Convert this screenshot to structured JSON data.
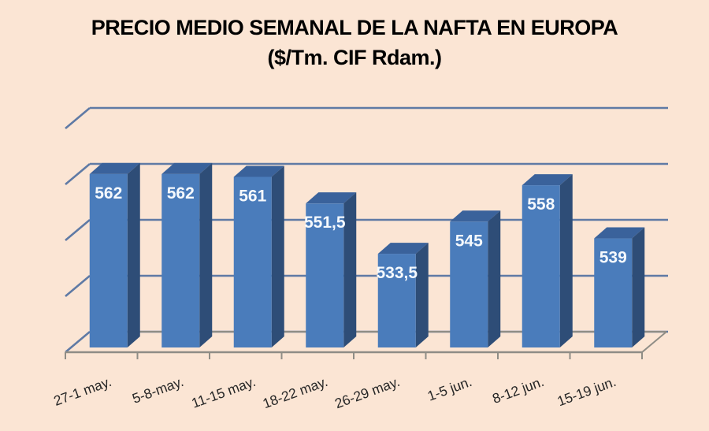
{
  "chart_data": {
    "type": "bar",
    "projection": "3d",
    "title": "PRECIO MEDIO SEMANAL DE LA NAFTA EN EUROPA",
    "subtitle": "($/Tm. CIF Rdam.)",
    "categories": [
      "27-1 may.",
      "5-8-may.",
      "11-15 may.",
      "18-22 may.",
      "26-29 may.",
      "1-5 jun.",
      "8-12 jun.",
      "15-19 jun."
    ],
    "values": [
      562,
      562,
      561,
      551.5,
      533.5,
      545,
      558,
      539
    ],
    "value_labels": [
      "562",
      "562",
      "561",
      "551,5",
      "533,5",
      "545",
      "558",
      "539"
    ],
    "ylim": [
      500,
      580
    ],
    "grid_step": 20,
    "grid": true,
    "legend": false,
    "y_axis_labels_visible": false,
    "colors": {
      "background": "#fbe5d4",
      "bar_front": "#4a7cbb",
      "bar_top": "#3a629b",
      "bar_side": "#2e4d77",
      "gridline": "#5f7aa5",
      "floor": "#8f8d86",
      "value_label": "#f5f9fd",
      "category_label": "#262626",
      "title": "#000000"
    }
  }
}
